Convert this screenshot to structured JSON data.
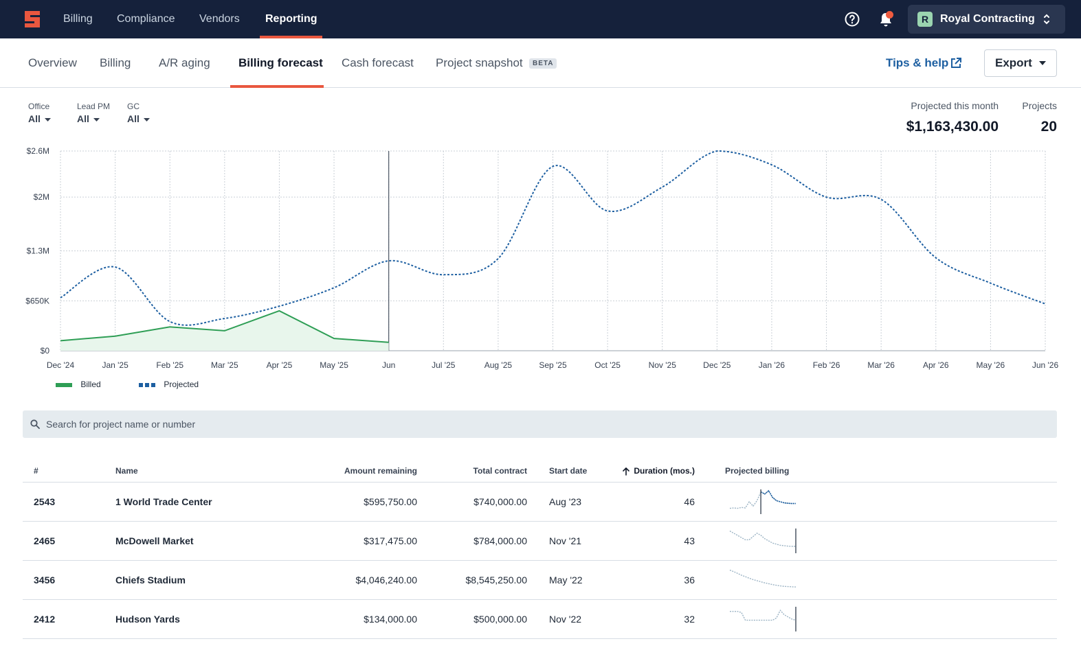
{
  "topnav": {
    "items": [
      {
        "label": "Billing",
        "active": false
      },
      {
        "label": "Compliance",
        "active": false
      },
      {
        "label": "Vendors",
        "active": false
      },
      {
        "label": "Reporting",
        "active": true
      }
    ],
    "org": {
      "initial": "R",
      "name": "Royal Contracting"
    },
    "has_notification": true
  },
  "subtabs": {
    "items": [
      {
        "label": "Overview",
        "active": false
      },
      {
        "label": "Billing",
        "active": false
      },
      {
        "label": "A/R aging",
        "active": false
      },
      {
        "label": "Billing forecast",
        "active": true
      },
      {
        "label": "Cash forecast",
        "active": false
      },
      {
        "label": "Project snapshot",
        "active": false
      }
    ],
    "beta_label": "BETA",
    "tips_label": "Tips & help",
    "export_label": "Export"
  },
  "filters": [
    {
      "label": "Office",
      "value": "All"
    },
    {
      "label": "Lead PM",
      "value": "All"
    },
    {
      "label": "GC",
      "value": "All"
    }
  ],
  "metrics": {
    "projected_label": "Projected this month",
    "projected_value": "$1,163,430.00",
    "projects_label": "Projects",
    "projects_value": "20"
  },
  "chart_data": {
    "type": "line",
    "categories": [
      "Dec '24",
      "Jan '25",
      "Feb '25",
      "Mar '25",
      "Apr '25",
      "May '25",
      "Jun",
      "Jul '25",
      "Aug '25",
      "Sep '25",
      "Oct '25",
      "Nov '25",
      "Dec '25",
      "Jan '26",
      "Feb '26",
      "Mar '26",
      "Apr '26",
      "May '26",
      "Jun '26"
    ],
    "y_ticks": [
      {
        "value": 0,
        "label": "$0"
      },
      {
        "value": 650000,
        "label": "$650K"
      },
      {
        "value": 1300000,
        "label": "$1.3M"
      },
      {
        "value": 2000000,
        "label": "$2M"
      },
      {
        "value": 2600000,
        "label": "$2.6M"
      }
    ],
    "ylim": [
      0,
      2600000
    ],
    "current_month_index": 6,
    "grid": true,
    "legend_position": "bottom-left",
    "series": [
      {
        "name": "Billed",
        "style": "solid-area",
        "color": "#2e9e55",
        "values": [
          130000,
          190000,
          310000,
          260000,
          520000,
          160000,
          110000,
          null,
          null,
          null,
          null,
          null,
          null,
          null,
          null,
          null,
          null,
          null,
          null
        ]
      },
      {
        "name": "Projected",
        "style": "dotted",
        "color": "#1d5fa1",
        "values": [
          690000,
          1090000,
          380000,
          420000,
          580000,
          820000,
          1170000,
          990000,
          1200000,
          2400000,
          1820000,
          2130000,
          2600000,
          2420000,
          2000000,
          1970000,
          1210000,
          880000,
          610000
        ]
      }
    ]
  },
  "search": {
    "placeholder": "Search for project name or number"
  },
  "table": {
    "columns": [
      "#",
      "Name",
      "Amount remaining",
      "Total contract",
      "Start date",
      "Duration (mos.)",
      "Projected billing"
    ],
    "sort_column": "Duration (mos.)",
    "rows": [
      {
        "num": "2543",
        "name": "1 World Trade Center",
        "remaining": "$595,750.00",
        "total": "$740,000.00",
        "start": "Aug '23",
        "duration": "46",
        "spark": [
          0.2,
          0.22,
          0.2,
          0.24,
          0.22,
          0.5,
          0.3,
          0.55,
          0.95,
          0.85,
          1.0,
          0.7,
          0.55,
          0.5,
          0.45,
          0.43,
          0.42,
          0.42
        ],
        "spark_marker": 0.47
      },
      {
        "num": "2465",
        "name": "McDowell Market",
        "remaining": "$317,475.00",
        "total": "$784,000.00",
        "start": "Nov '21",
        "duration": "43",
        "spark": [
          0.95,
          0.85,
          0.75,
          0.65,
          0.55,
          0.55,
          0.7,
          0.85,
          0.75,
          0.6,
          0.5,
          0.4,
          0.35,
          0.3,
          0.28,
          0.26,
          0.25,
          0.25
        ],
        "spark_marker": 1.0
      },
      {
        "num": "3456",
        "name": "Chiefs Stadium",
        "remaining": "$4,046,240.00",
        "total": "$8,545,250.00",
        "start": "May '22",
        "duration": "36",
        "spark": [
          0.95,
          0.88,
          0.8,
          0.72,
          0.65,
          0.58,
          0.52,
          0.47,
          0.42,
          0.37,
          0.33,
          0.29,
          0.26,
          0.23,
          0.21,
          0.2,
          0.19,
          0.18
        ],
        "spark_marker": null
      },
      {
        "num": "2412",
        "name": "Hudson Yards",
        "remaining": "$134,000.00",
        "total": "$500,000.00",
        "start": "Nov '22",
        "duration": "32",
        "spark": [
          0.85,
          0.85,
          0.85,
          0.8,
          0.45,
          0.45,
          0.45,
          0.45,
          0.45,
          0.45,
          0.45,
          0.45,
          0.55,
          0.9,
          0.7,
          0.6,
          0.5,
          0.45
        ],
        "spark_marker": 1.0
      }
    ]
  },
  "colors": {
    "accent": "#e9573f",
    "nav_bg": "#15213b",
    "billed": "#2e9e55",
    "projected": "#1d5fa1",
    "spark": "#9bb3c4",
    "spark_active": "#1d5fa1"
  }
}
